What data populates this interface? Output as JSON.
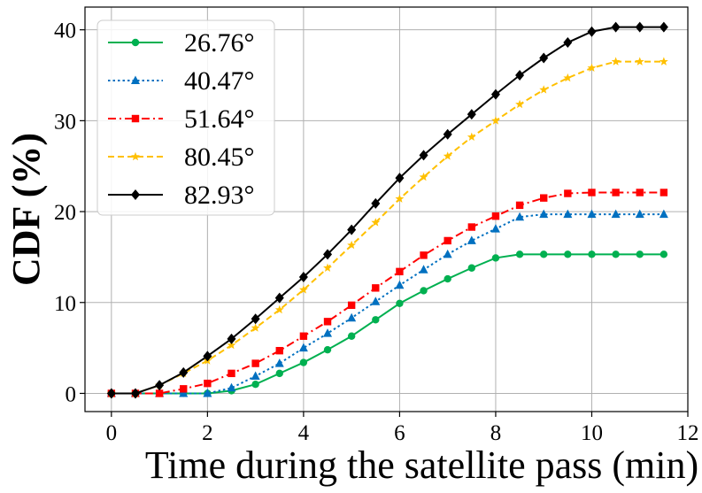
{
  "chart_data": {
    "type": "line",
    "title": "",
    "xlabel": "Time during the satellite pass (min)",
    "ylabel": "CDF (%)",
    "xlim": [
      -0.55,
      12.0
    ],
    "ylim": [
      -2.0,
      42.5
    ],
    "xticks": [
      0,
      2,
      4,
      6,
      8,
      10,
      12
    ],
    "yticks": [
      0,
      10,
      20,
      30,
      40
    ],
    "grid": true,
    "legend_position": "top-left",
    "x": [
      0,
      0.5,
      1,
      1.5,
      2,
      2.5,
      3,
      3.5,
      4,
      4.5,
      5,
      5.5,
      6,
      6.5,
      7,
      7.5,
      8,
      8.5,
      9,
      9.5,
      10,
      10.5,
      11,
      11.5
    ],
    "series": [
      {
        "name": "26.76°",
        "color": "#00b050",
        "dash": "solid",
        "marker": "circle",
        "values": [
          0,
          0,
          0,
          0,
          0,
          0.3,
          1.0,
          2.2,
          3.4,
          4.8,
          6.3,
          8.1,
          9.9,
          11.3,
          12.6,
          13.8,
          14.9,
          15.3,
          15.3,
          15.3,
          15.3,
          15.3,
          15.3,
          15.3
        ]
      },
      {
        "name": "40.47°",
        "color": "#0070c0",
        "dash": "dotted",
        "marker": "triangle",
        "values": [
          0,
          0,
          0,
          0,
          0,
          0.6,
          1.9,
          3.3,
          5.0,
          6.6,
          8.3,
          10.1,
          11.9,
          13.6,
          15.3,
          16.8,
          18.1,
          19.4,
          19.7,
          19.7,
          19.7,
          19.7,
          19.7,
          19.7
        ]
      },
      {
        "name": "51.64°",
        "color": "#ff0000",
        "dash": "dashdot",
        "marker": "square",
        "values": [
          0,
          0,
          0,
          0.5,
          1.1,
          2.2,
          3.3,
          4.7,
          6.3,
          7.9,
          9.7,
          11.6,
          13.4,
          15.2,
          16.8,
          18.3,
          19.5,
          20.7,
          21.5,
          22.0,
          22.1,
          22.1,
          22.1,
          22.1
        ]
      },
      {
        "name": "80.45°",
        "color": "#ffc000",
        "dash": "dashed",
        "marker": "star",
        "values": [
          0,
          0,
          0.9,
          2.2,
          3.6,
          5.3,
          7.2,
          9.2,
          11.4,
          13.8,
          16.3,
          18.8,
          21.4,
          23.8,
          26.1,
          28.2,
          30.0,
          31.8,
          33.4,
          34.7,
          35.8,
          36.5,
          36.5,
          36.5
        ]
      },
      {
        "name": "82.93°",
        "color": "#000000",
        "dash": "solid",
        "marker": "diamond",
        "values": [
          0,
          0,
          0.9,
          2.3,
          4.1,
          6.0,
          8.2,
          10.5,
          12.8,
          15.3,
          18.0,
          20.9,
          23.7,
          26.2,
          28.5,
          30.7,
          32.9,
          35.0,
          36.9,
          38.6,
          39.8,
          40.3,
          40.3,
          40.3
        ]
      }
    ]
  }
}
